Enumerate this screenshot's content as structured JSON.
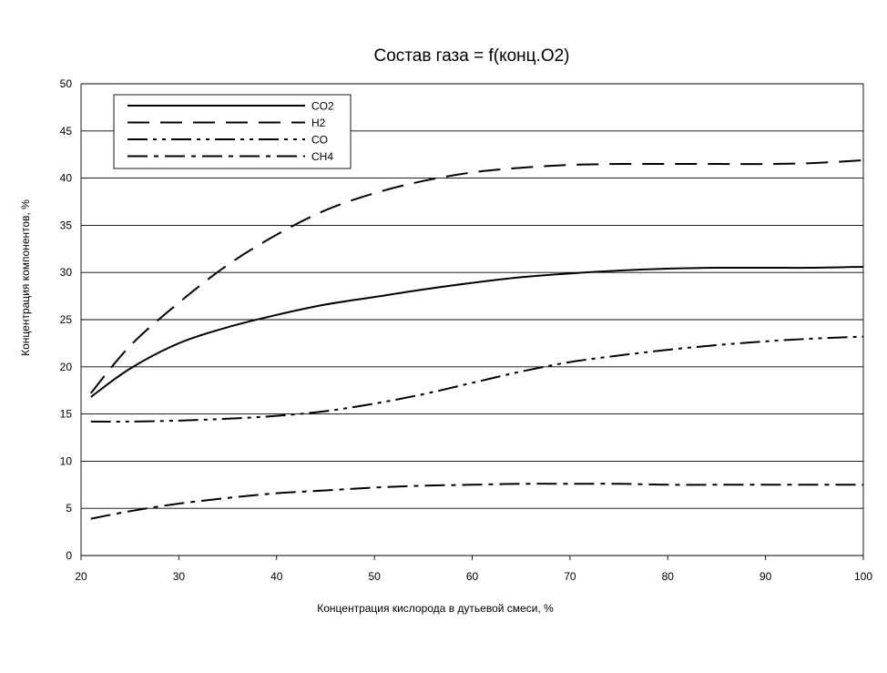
{
  "chart_data": {
    "type": "line",
    "title": "Состав газа = f(конц.O2)",
    "xlabel": "Концентрация кислорода в дутьевой смеси, %",
    "ylabel": "Концентрация компонентов, %",
    "xlim": [
      20,
      100
    ],
    "ylim": [
      0,
      50
    ],
    "xticks": [
      20,
      30,
      40,
      50,
      60,
      70,
      80,
      90,
      100
    ],
    "yticks": [
      0,
      5,
      10,
      15,
      20,
      25,
      30,
      35,
      40,
      45,
      50
    ],
    "grid": "horizontal",
    "legend_position": "top-left",
    "series": [
      {
        "name": "CO2",
        "style": "solid",
        "x": [
          21,
          25,
          30,
          35,
          40,
          45,
          50,
          55,
          60,
          65,
          70,
          75,
          80,
          85,
          90,
          95,
          100
        ],
        "y": [
          16.8,
          19.8,
          22.5,
          24.2,
          25.5,
          26.6,
          27.4,
          28.2,
          28.9,
          29.5,
          29.9,
          30.2,
          30.4,
          30.5,
          30.5,
          30.5,
          30.6
        ]
      },
      {
        "name": "H2",
        "style": "dash",
        "x": [
          21,
          25,
          30,
          35,
          40,
          45,
          50,
          55,
          60,
          65,
          70,
          75,
          80,
          85,
          90,
          95,
          100
        ],
        "y": [
          17.2,
          22.2,
          26.8,
          30.8,
          34.0,
          36.6,
          38.4,
          39.7,
          40.6,
          41.1,
          41.4,
          41.5,
          41.5,
          41.5,
          41.5,
          41.6,
          41.9
        ]
      },
      {
        "name": "CO",
        "style": "dash-dot-dot",
        "x": [
          21,
          25,
          30,
          35,
          40,
          45,
          50,
          55,
          60,
          65,
          70,
          75,
          80,
          85,
          90,
          95,
          100
        ],
        "y": [
          14.2,
          14.2,
          14.3,
          14.5,
          14.8,
          15.3,
          16.1,
          17.1,
          18.3,
          19.5,
          20.5,
          21.2,
          21.8,
          22.3,
          22.7,
          23.0,
          23.2
        ]
      },
      {
        "name": "CH4",
        "style": "dash-dot",
        "x": [
          21,
          25,
          30,
          35,
          40,
          45,
          50,
          55,
          60,
          65,
          70,
          75,
          80,
          85,
          90,
          95,
          100
        ],
        "y": [
          3.9,
          4.7,
          5.5,
          6.1,
          6.6,
          6.9,
          7.2,
          7.4,
          7.5,
          7.6,
          7.6,
          7.6,
          7.5,
          7.5,
          7.5,
          7.5,
          7.5
        ]
      }
    ]
  }
}
